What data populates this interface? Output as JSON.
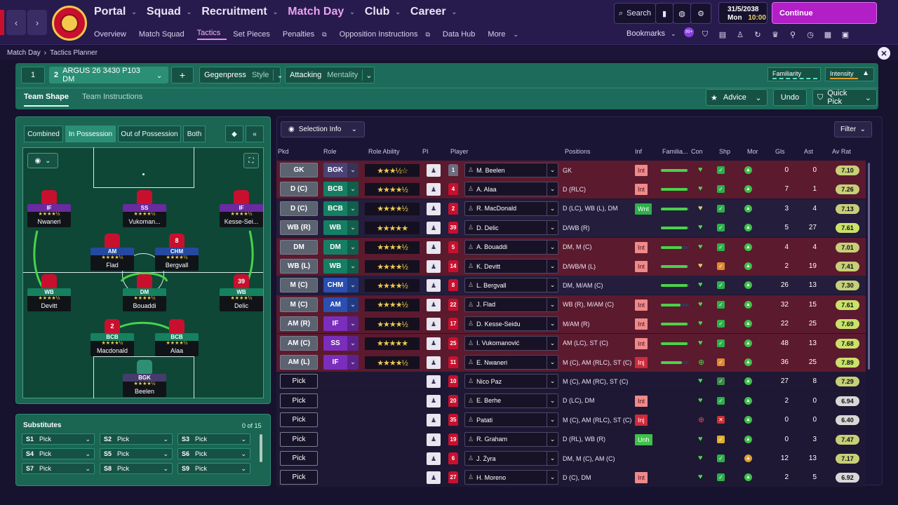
{
  "topnav": {
    "menu": [
      {
        "label": "Portal",
        "active": false
      },
      {
        "label": "Squad",
        "active": false
      },
      {
        "label": "Recruitment",
        "active": false
      },
      {
        "label": "Match Day",
        "active": true
      },
      {
        "label": "Club",
        "active": false
      },
      {
        "label": "Career",
        "active": false
      }
    ],
    "submenu": [
      "Overview",
      "Match Squad",
      "Tactics",
      "Set Pieces",
      "Penalties",
      "Opposition Instructions",
      "Data Hub",
      "More"
    ],
    "search_label": "Search",
    "date": "31/5/2038",
    "day": "Mon",
    "time": "10:00",
    "continue_label": "Continue",
    "bookmarks_label": "Bookmarks",
    "notif_count": "99+"
  },
  "breadcrumb": {
    "root": "Match Day",
    "current": "Tactics Planner"
  },
  "tactic": {
    "slot1": "1",
    "slot2_num": "2",
    "slot2_name": "ARGUS 26 3430 P103 DM",
    "plus": "+",
    "style_value": "Gegenpress",
    "style_label": "Style",
    "mentality_value": "Attacking",
    "mentality_label": "Mentality",
    "familiarity": "Familiarity",
    "intensity": "Intensity",
    "tabs": [
      "Team Shape",
      "Team Instructions"
    ],
    "advice": "Advice",
    "undo": "Undo",
    "quick_pick": "Quick Pick"
  },
  "pitch_modes": [
    "Combined",
    "In Possession",
    "Out of Possession",
    "Both"
  ],
  "pitch_players": [
    {
      "role": "IF",
      "name": "Nwaneri",
      "num": "",
      "cls": "r-att"
    },
    {
      "role": "SS",
      "name": "Vukoman...",
      "num": "",
      "cls": "r-att"
    },
    {
      "role": "IF",
      "name": "Kesse-Sei...",
      "num": "",
      "cls": "r-att"
    },
    {
      "role": "AM",
      "name": "Flad",
      "num": "",
      "cls": "r-mid"
    },
    {
      "role": "CHM",
      "name": "Bergvall",
      "num": "8",
      "cls": "r-mid"
    },
    {
      "role": "WB",
      "name": "Devitt",
      "num": "",
      "cls": "r-def"
    },
    {
      "role": "DM",
      "name": "Bouaddi",
      "num": "",
      "cls": "r-def"
    },
    {
      "role": "WB",
      "name": "Delic",
      "num": "39",
      "cls": "r-def"
    },
    {
      "role": "BCB",
      "name": "Macdonald",
      "num": "2",
      "cls": "r-def"
    },
    {
      "role": "BCB",
      "name": "Alaa",
      "num": "",
      "cls": "r-def"
    },
    {
      "role": "BGK",
      "name": "Beelen",
      "num": "",
      "cls": "r-gk"
    }
  ],
  "subs": {
    "title": "Substitutes",
    "count": "0 of 15",
    "slots": [
      {
        "id": "S1",
        "v": "Pick"
      },
      {
        "id": "S2",
        "v": "Pick"
      },
      {
        "id": "S3",
        "v": "Pick"
      },
      {
        "id": "S4",
        "v": "Pick"
      },
      {
        "id": "S5",
        "v": "Pick"
      },
      {
        "id": "S6",
        "v": "Pick"
      },
      {
        "id": "S7",
        "v": "Pick"
      },
      {
        "id": "S8",
        "v": "Pick"
      },
      {
        "id": "S9",
        "v": "Pick"
      }
    ]
  },
  "selection_info": "Selection Info",
  "filter": "Filter",
  "columns": [
    "Pkd",
    "Role",
    "Role Ability",
    "PI",
    "Player",
    "Positions",
    "Inf",
    "Familia...",
    "Con",
    "Shp",
    "Mor",
    "Gls",
    "Ast",
    "Av Rat"
  ],
  "rows": [
    {
      "pkd": "GK",
      "role": "BGK",
      "rc": "#4a4274",
      "stars": "★★★½☆",
      "num": "1",
      "player": "M. Beelen",
      "pos": "GK",
      "inf": "Int",
      "fam": 0.95,
      "gls": "0",
      "ast": "0",
      "rat": "7.10",
      "bg": "#5c1a2e",
      "tone": "gk"
    },
    {
      "pkd": "D (C)",
      "role": "BCB",
      "rc": "#157f63",
      "stars": "★★★★½",
      "num": "4",
      "player": "A. Alaa",
      "pos": "D (RLC)",
      "inf": "Int",
      "fam": 0.95,
      "gls": "7",
      "ast": "1",
      "rat": "7.26",
      "bg": "#5c1a2e",
      "tone": "def"
    },
    {
      "pkd": "D (C)",
      "role": "BCB",
      "rc": "#157f63",
      "stars": "★★★★½",
      "num": "2",
      "player": "R. MacDonald",
      "pos": "D (LC), WB (L), DM",
      "inf": "Wnt",
      "fam": 0.95,
      "gls": "3",
      "ast": "4",
      "rat": "7.13",
      "bg": "#241d3c",
      "tone": "def"
    },
    {
      "pkd": "WB (R)",
      "role": "WB",
      "rc": "#157f63",
      "stars": "★★★★★",
      "num": "39",
      "player": "D. Delic",
      "pos": "D/WB (R)",
      "inf": "",
      "fam": 0.95,
      "gls": "5",
      "ast": "27",
      "rat": "7.61",
      "bg": "#241d3c",
      "tone": "def"
    },
    {
      "pkd": "DM",
      "role": "DM",
      "rc": "#157f63",
      "stars": "★★★★½",
      "num": "5",
      "player": "A. Bouaddi",
      "pos": "DM, M (C)",
      "inf": "Int",
      "fam": 0.75,
      "gls": "4",
      "ast": "4",
      "rat": "7.01",
      "bg": "#5c1a2e",
      "tone": "def"
    },
    {
      "pkd": "WB (L)",
      "role": "WB",
      "rc": "#157f63",
      "stars": "★★★★½",
      "num": "14",
      "player": "K. Devitt",
      "pos": "D/WB/M (L)",
      "inf": "Int",
      "fam": 0.95,
      "gls": "2",
      "ast": "19",
      "rat": "7.41",
      "bg": "#5c1a2e",
      "tone": "def"
    },
    {
      "pkd": "M (C)",
      "role": "CHM",
      "rc": "#2a4fb0",
      "stars": "★★★★½",
      "num": "8",
      "player": "L. Bergvall",
      "pos": "DM, M/AM (C)",
      "inf": "",
      "fam": 0.95,
      "gls": "26",
      "ast": "13",
      "rat": "7.30",
      "bg": "#241d3c",
      "tone": "mid"
    },
    {
      "pkd": "M (C)",
      "role": "AM",
      "rc": "#2a4fb0",
      "stars": "★★★★½",
      "num": "22",
      "player": "J. Flad",
      "pos": "WB (R), M/AM (C)",
      "inf": "Int",
      "fam": 0.7,
      "gls": "32",
      "ast": "15",
      "rat": "7.61",
      "bg": "#5c1a2e",
      "tone": "mid"
    },
    {
      "pkd": "AM (R)",
      "role": "IF",
      "rc": "#7b2dbb",
      "stars": "★★★★½",
      "num": "17",
      "player": "D. Kesse-Seidu",
      "pos": "M/AM (R)",
      "inf": "Int",
      "fam": 0.95,
      "gls": "22",
      "ast": "25",
      "rat": "7.69",
      "bg": "#5c1a2e",
      "tone": "att"
    },
    {
      "pkd": "AM (C)",
      "role": "SS",
      "rc": "#7b2dbb",
      "stars": "★★★★★",
      "num": "25",
      "player": "I. Vukomanović",
      "pos": "AM (LC), ST (C)",
      "inf": "Int",
      "fam": 0.95,
      "gls": "48",
      "ast": "13",
      "rat": "7.68",
      "bg": "#5c1a2e",
      "tone": "att"
    },
    {
      "pkd": "AM (L)",
      "role": "IF",
      "rc": "#7b2dbb",
      "stars": "★★★★½",
      "num": "11",
      "player": "E. Nwaneri",
      "pos": "M (C), AM (RLC), ST (C)",
      "inf": "Inj",
      "fam": 0.75,
      "gls": "36",
      "ast": "25",
      "rat": "7.89",
      "bg": "#5c1a2e",
      "tone": "att"
    },
    {
      "pkd": "Pick",
      "role": "",
      "rc": "",
      "stars": "",
      "num": "10",
      "player": "Nico Paz",
      "pos": "M (C), AM (RC), ST (C)",
      "inf": "",
      "fam": 0,
      "gls": "27",
      "ast": "8",
      "rat": "7.29",
      "bg": "#1e1834",
      "tone": "none"
    },
    {
      "pkd": "Pick",
      "role": "",
      "rc": "",
      "stars": "",
      "num": "20",
      "player": "E. Berhe",
      "pos": "D (LC), DM",
      "inf": "Int",
      "fam": 0,
      "gls": "2",
      "ast": "0",
      "rat": "6.94",
      "bg": "#1e1834",
      "tone": "none"
    },
    {
      "pkd": "Pick",
      "role": "",
      "rc": "",
      "stars": "",
      "num": "35",
      "player": "Patati",
      "pos": "M (C), AM (RLC), ST (C)",
      "inf": "Inj",
      "fam": 0,
      "gls": "0",
      "ast": "0",
      "rat": "6.40",
      "bg": "#1e1834",
      "tone": "none"
    },
    {
      "pkd": "Pick",
      "role": "",
      "rc": "",
      "stars": "",
      "num": "19",
      "player": "R. Graham",
      "pos": "D (RL), WB (R)",
      "inf": "Unh",
      "fam": 0,
      "gls": "0",
      "ast": "3",
      "rat": "7.47",
      "bg": "#1e1834",
      "tone": "none"
    },
    {
      "pkd": "Pick",
      "role": "",
      "rc": "",
      "stars": "",
      "num": "6",
      "player": "J. Żyra",
      "pos": "DM, M (C), AM (C)",
      "inf": "",
      "fam": 0,
      "gls": "12",
      "ast": "13",
      "rat": "7.17",
      "bg": "#1e1834",
      "tone": "none"
    },
    {
      "pkd": "Pick",
      "role": "",
      "rc": "",
      "stars": "",
      "num": "27",
      "player": "H. Moreno",
      "pos": "D (C), DM",
      "inf": "Int",
      "fam": 0,
      "gls": "2",
      "ast": "5",
      "rat": "6.92",
      "bg": "#1e1834",
      "tone": "none"
    }
  ]
}
